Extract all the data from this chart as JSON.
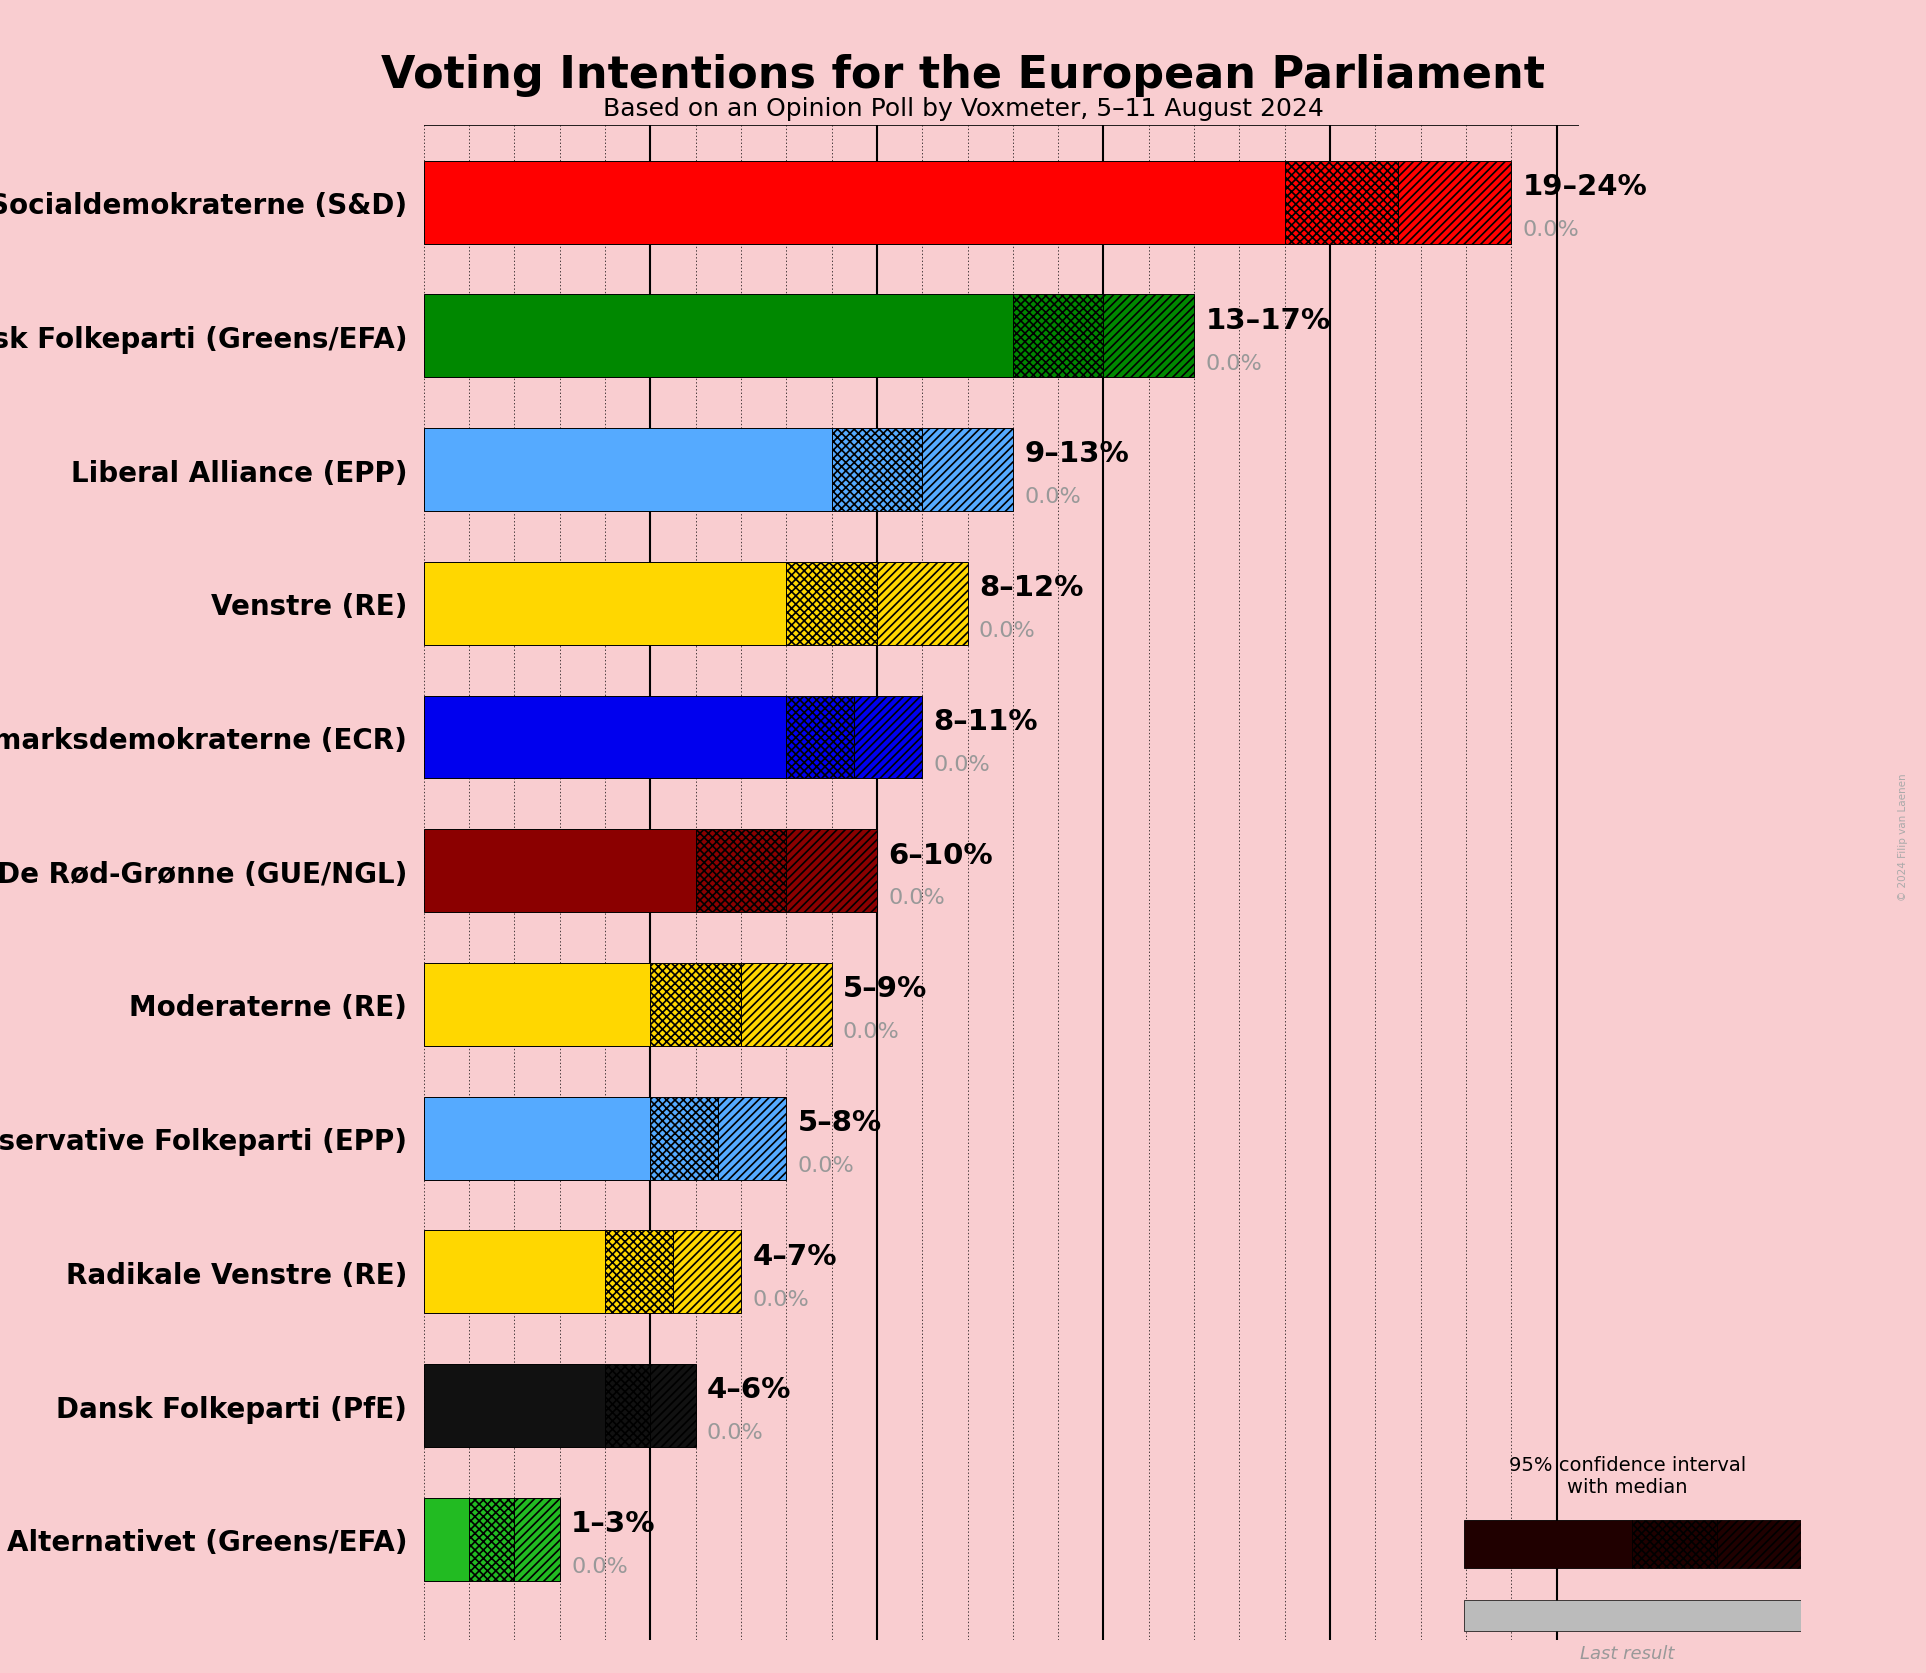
{
  "title": "Voting Intentions for the European Parliament",
  "subtitle": "Based on an Opinion Poll by Voxmeter, 5–11 August 2024",
  "copyright": "© 2024 Filip van Laenen",
  "background_color": "#f9cdd0",
  "parties": [
    {
      "name": "Socialdemokraterne (S&D)",
      "low": 19,
      "high": 24,
      "last": 0.0,
      "color": "#FF0000"
    },
    {
      "name": "Socialistisk Folkeparti (Greens/EFA)",
      "low": 13,
      "high": 17,
      "last": 0.0,
      "color": "#008800"
    },
    {
      "name": "Liberal Alliance (EPP)",
      "low": 9,
      "high": 13,
      "last": 0.0,
      "color": "#55AAFF"
    },
    {
      "name": "Venstre (RE)",
      "low": 8,
      "high": 12,
      "last": 0.0,
      "color": "#FFD700"
    },
    {
      "name": "Danmarksdemokraterne (ECR)",
      "low": 8,
      "high": 11,
      "last": 0.0,
      "color": "#0000EE"
    },
    {
      "name": "Enhedslisten–De Rød-Grønne (GUE/NGL)",
      "low": 6,
      "high": 10,
      "last": 0.0,
      "color": "#8B0000"
    },
    {
      "name": "Moderaterne (RE)",
      "low": 5,
      "high": 9,
      "last": 0.0,
      "color": "#FFD700"
    },
    {
      "name": "Det Konservative Folkeparti (EPP)",
      "low": 5,
      "high": 8,
      "last": 0.0,
      "color": "#55AAFF"
    },
    {
      "name": "Radikale Venstre (RE)",
      "low": 4,
      "high": 7,
      "last": 0.0,
      "color": "#FFD700"
    },
    {
      "name": "Dansk Folkeparti (PfE)",
      "low": 4,
      "high": 6,
      "last": 0.0,
      "color": "#111111"
    },
    {
      "name": "Alternativet (Greens/EFA)",
      "low": 1,
      "high": 3,
      "last": 0.0,
      "color": "#22BB22"
    }
  ],
  "xlim_max": 25.5,
  "bar_height": 0.62,
  "label_fontsize": 20,
  "range_fontsize": 21,
  "last_fontsize": 16,
  "title_fontsize": 32,
  "subtitle_fontsize": 18,
  "hatch_lw": 1.2
}
